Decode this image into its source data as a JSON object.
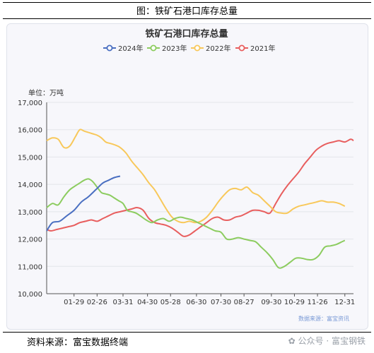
{
  "figure_title": "图：铁矿石港口库存总量",
  "footer": {
    "source": "资料来源：富宝数据终端",
    "watermark": "公众号 · 富宝钢铁"
  },
  "colors": {
    "2024": "#4a6fc1",
    "2023": "#8ccc5f",
    "2022": "#f8c85a",
    "2021": "#e85e5e"
  },
  "chart_data": {
    "type": "line",
    "title": "铁矿石港口库存总量",
    "unit_label": "单位：万吨",
    "source_note": "数据来源：富宝资讯",
    "ylim": [
      10000,
      17000
    ],
    "y_ticks": [
      "10,000",
      "11,000",
      "12,000",
      "13,000",
      "14,000",
      "15,000",
      "16,000",
      "17,000"
    ],
    "y_tick_values": [
      10000,
      11000,
      12000,
      13000,
      14000,
      15000,
      16000,
      17000
    ],
    "x_ticks": [
      "01-29",
      "02-26",
      "03-31",
      "04-30",
      "05-28",
      "06-30",
      "07-30",
      "08-27",
      "09-30",
      "10-29",
      "11-26",
      "12-31"
    ],
    "x_tick_positions": [
      20,
      36,
      54,
      71,
      87,
      105,
      122,
      138,
      157,
      173,
      189,
      208
    ],
    "x_range": [
      1,
      214
    ],
    "grid": "horizontal",
    "legend_position": "top-center",
    "series": [
      {
        "name": "2024年",
        "x": [
          1,
          5,
          10,
          15,
          20,
          25,
          30,
          35,
          40,
          44,
          48,
          52
        ],
        "values": [
          12300,
          12600,
          12650,
          12850,
          13050,
          13350,
          13550,
          13800,
          14050,
          14150,
          14250,
          14300
        ]
      },
      {
        "name": "2023年",
        "x": [
          1,
          5,
          9,
          13,
          17,
          21,
          24,
          27,
          30,
          33,
          36,
          39,
          42,
          45,
          48,
          51,
          54,
          57,
          60,
          63,
          66,
          70,
          74,
          78,
          82,
          86,
          90,
          94,
          98,
          102,
          106,
          110,
          114,
          118,
          122,
          126,
          130,
          134,
          138,
          142,
          146,
          150,
          154,
          158,
          162,
          166,
          170,
          174,
          178,
          182,
          186,
          190,
          194,
          198,
          202,
          206,
          208
        ],
        "values": [
          13150,
          13300,
          13250,
          13550,
          13800,
          13950,
          14050,
          14150,
          14200,
          14100,
          13900,
          13700,
          13650,
          13600,
          13500,
          13400,
          13300,
          13050,
          13000,
          12950,
          12850,
          12700,
          12600,
          12700,
          12750,
          12650,
          12750,
          12800,
          12750,
          12700,
          12600,
          12500,
          12400,
          12300,
          12250,
          12000,
          12000,
          12050,
          12000,
          11950,
          11900,
          11700,
          11500,
          11250,
          10950,
          11000,
          11150,
          11300,
          11300,
          11250,
          11250,
          11400,
          11700,
          11750,
          11800,
          11900,
          11950
        ]
      },
      {
        "name": "2022年",
        "x": [
          1,
          5,
          9,
          13,
          17,
          21,
          24,
          27,
          30,
          33,
          36,
          39,
          42,
          45,
          48,
          52,
          56,
          60,
          64,
          68,
          72,
          76,
          80,
          84,
          88,
          92,
          96,
          100,
          104,
          108,
          112,
          116,
          120,
          124,
          128,
          132,
          136,
          140,
          144,
          148,
          152,
          156,
          160,
          164,
          168,
          172,
          176,
          180,
          184,
          188,
          192,
          196,
          200,
          204,
          208
        ],
        "values": [
          15600,
          15700,
          15650,
          15350,
          15400,
          15750,
          16000,
          15950,
          15900,
          15850,
          15800,
          15700,
          15550,
          15500,
          15450,
          15350,
          15150,
          14850,
          14600,
          14350,
          14050,
          13800,
          13450,
          13100,
          12800,
          12650,
          12600,
          12650,
          12600,
          12650,
          12800,
          13050,
          13350,
          13600,
          13800,
          13850,
          13800,
          13900,
          13700,
          13600,
          13400,
          13200,
          13000,
          12950,
          12950,
          13100,
          13200,
          13250,
          13300,
          13350,
          13400,
          13350,
          13350,
          13300,
          13200
        ]
      },
      {
        "name": "2021年",
        "x": [
          1,
          4,
          8,
          12,
          16,
          20,
          24,
          28,
          32,
          36,
          40,
          44,
          48,
          52,
          56,
          60,
          64,
          68,
          72,
          76,
          80,
          84,
          88,
          92,
          96,
          100,
          104,
          108,
          112,
          116,
          120,
          124,
          128,
          132,
          136,
          140,
          144,
          148,
          152,
          156,
          160,
          164,
          168,
          172,
          176,
          180,
          184,
          188,
          192,
          196,
          200,
          204,
          208,
          212,
          214
        ],
        "values": [
          12350,
          12300,
          12350,
          12400,
          12450,
          12500,
          12600,
          12650,
          12700,
          12650,
          12750,
          12850,
          12950,
          13000,
          13050,
          13100,
          13150,
          13050,
          12750,
          12600,
          12550,
          12500,
          12400,
          12250,
          12100,
          12150,
          12300,
          12450,
          12600,
          12750,
          12800,
          12700,
          12700,
          12800,
          12850,
          12950,
          13050,
          13050,
          13000,
          12950,
          13300,
          13650,
          13950,
          14200,
          14450,
          14750,
          15000,
          15250,
          15400,
          15500,
          15550,
          15600,
          15550,
          15650,
          15600
        ]
      }
    ]
  }
}
